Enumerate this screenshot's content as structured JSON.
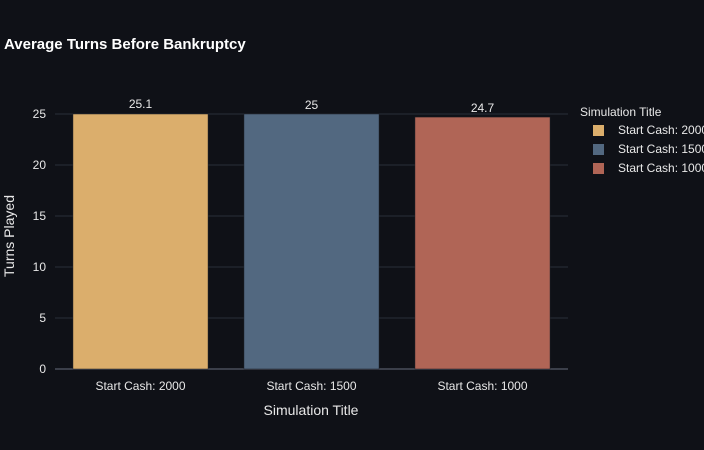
{
  "chart_data": {
    "type": "bar",
    "title": "Average Turns Before Bankruptcy",
    "xlabel": "Simulation Title",
    "ylabel": "Turns Played",
    "categories": [
      "Start Cash: 2000",
      "Start Cash: 1500",
      "Start Cash: 1000"
    ],
    "values": [
      25.1,
      25,
      24.7
    ],
    "data_labels": [
      "25.1",
      "25",
      "24.7"
    ],
    "colors": [
      "#dbae6c",
      "#526880",
      "#b06556"
    ],
    "ylim": [
      0,
      25
    ],
    "yticks": [
      0,
      5,
      10,
      15,
      20,
      25
    ],
    "grid": true,
    "legend": {
      "title": "Simulation Title",
      "position": "right",
      "entries": [
        "Start Cash: 2000",
        "Start Cash: 1500",
        "Start Cash: 1000"
      ]
    }
  }
}
